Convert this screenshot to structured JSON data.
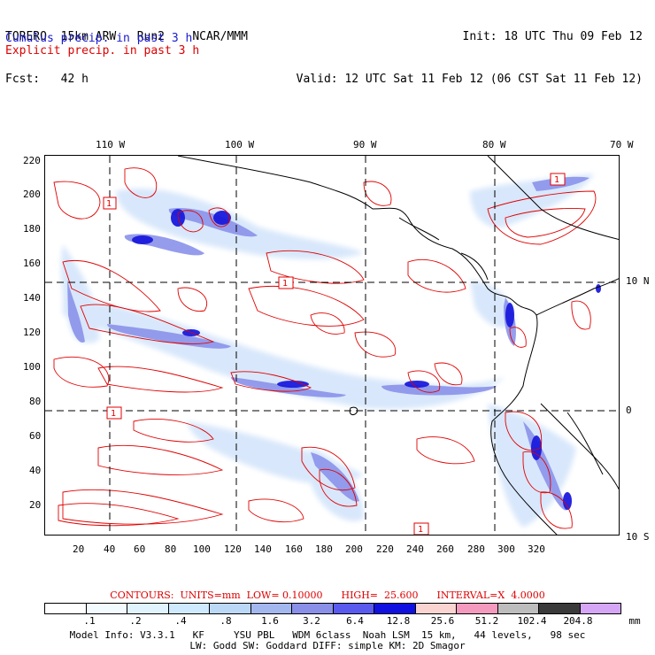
{
  "header": {
    "line1_left": "TORERO  15km ARW   Run2    NCAR/MMM",
    "line2_left": "Fcst:   42 h",
    "line1_right": "Init: 18 UTC Thu 09 Feb 12",
    "line2_right": "Valid: 12 UTC Sat 11 Feb 12 (06 CST Sat 11 Feb 12)"
  },
  "fields": {
    "cumulus": "Cumulus precip. in past 3 h",
    "explicit": "Explicit precip. in past 3 h"
  },
  "map": {
    "lon_labels": [
      "110 W",
      "100 W",
      "90 W",
      "80 W",
      "70 W"
    ],
    "lat_labels": [
      "10 N",
      "0",
      "10 S"
    ],
    "x_ticks": [
      "20",
      "40",
      "60",
      "80",
      "100",
      "120",
      "140",
      "160",
      "180",
      "200",
      "220",
      "240",
      "260",
      "280",
      "300",
      "320"
    ],
    "y_ticks": [
      "220",
      "200",
      "180",
      "160",
      "140",
      "120",
      "100",
      "80",
      "60",
      "40",
      "20"
    ],
    "max_markers": [
      "1",
      "1",
      "1",
      "1",
      "1"
    ]
  },
  "contour_info": {
    "text": "CONTOURS:  UNITS=mm  LOW= 0.10000      HIGH=  25.600      INTERVAL=X  4.0000"
  },
  "colorbar": {
    "colors": [
      "#ffffff",
      "#f2fbff",
      "#e0f4ff",
      "#cfe9ff",
      "#bcd8f7",
      "#a4b8f0",
      "#8a90e8",
      "#5a5aee",
      "#1010e0",
      "#f9d4d0",
      "#f39abe",
      "#bdbdbd",
      "#3a3a3a",
      "#d5a6f5"
    ],
    "labels": [
      ".1",
      ".2",
      ".4",
      ".8",
      "1.6",
      "3.2",
      "6.4",
      "12.8",
      "25.6",
      "51.2",
      "102.4",
      "204.8"
    ],
    "unit": "mm"
  },
  "footer": {
    "line1": "Model Info: V3.3.1   KF     YSU PBL   WDM 6class  Noah LSM  15 km,   44 levels,   98 sec",
    "line2": "LW: Godd SW: Goddard DIFF: simple KM: 2D Smagor"
  }
}
